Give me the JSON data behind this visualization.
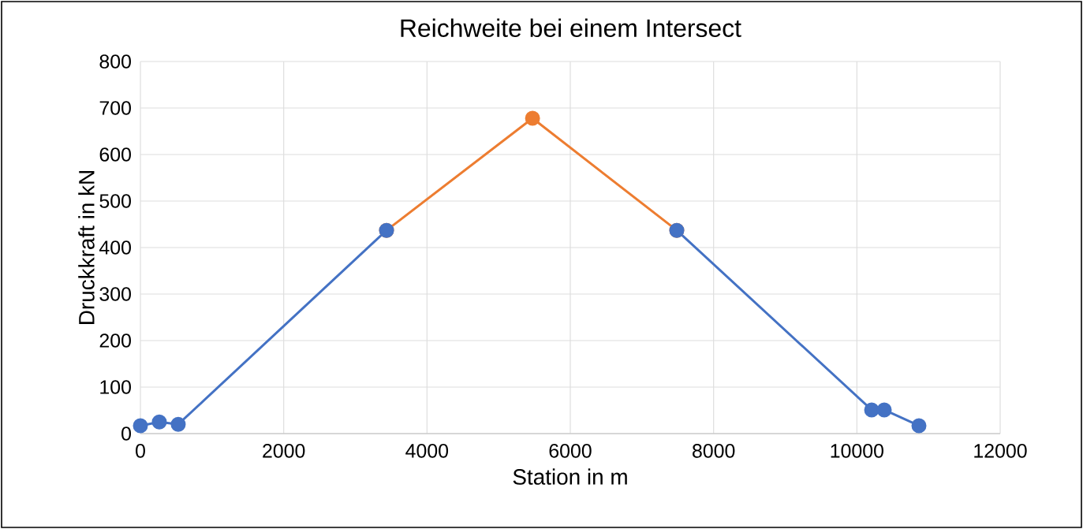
{
  "chart_data": {
    "type": "line",
    "title": "Reichweite bei einem Intersect",
    "xlabel": "Station in m",
    "ylabel": "Druckkraft in kN",
    "series": [
      {
        "color": "#ed7d31",
        "x": [
          3435,
          5473,
          7486
        ],
        "values": [
          437,
          678,
          437
        ]
      },
      {
        "color": "#4472c4",
        "x": [
          0,
          264,
          528,
          3435,
          5473,
          7486,
          10206,
          10382,
          10866
        ],
        "values": [
          17,
          25,
          20,
          437,
          null,
          437,
          51,
          51,
          17
        ]
      }
    ],
    "xlim": [
      0,
      12000
    ],
    "xticks": [
      0,
      2000,
      4000,
      6000,
      8000,
      10000,
      12000
    ],
    "ylim": [
      0,
      800
    ],
    "yticks": [
      0,
      100,
      200,
      300,
      400,
      500,
      600,
      700,
      800
    ],
    "grid": true,
    "marker": "circle",
    "line_style": "solid"
  }
}
